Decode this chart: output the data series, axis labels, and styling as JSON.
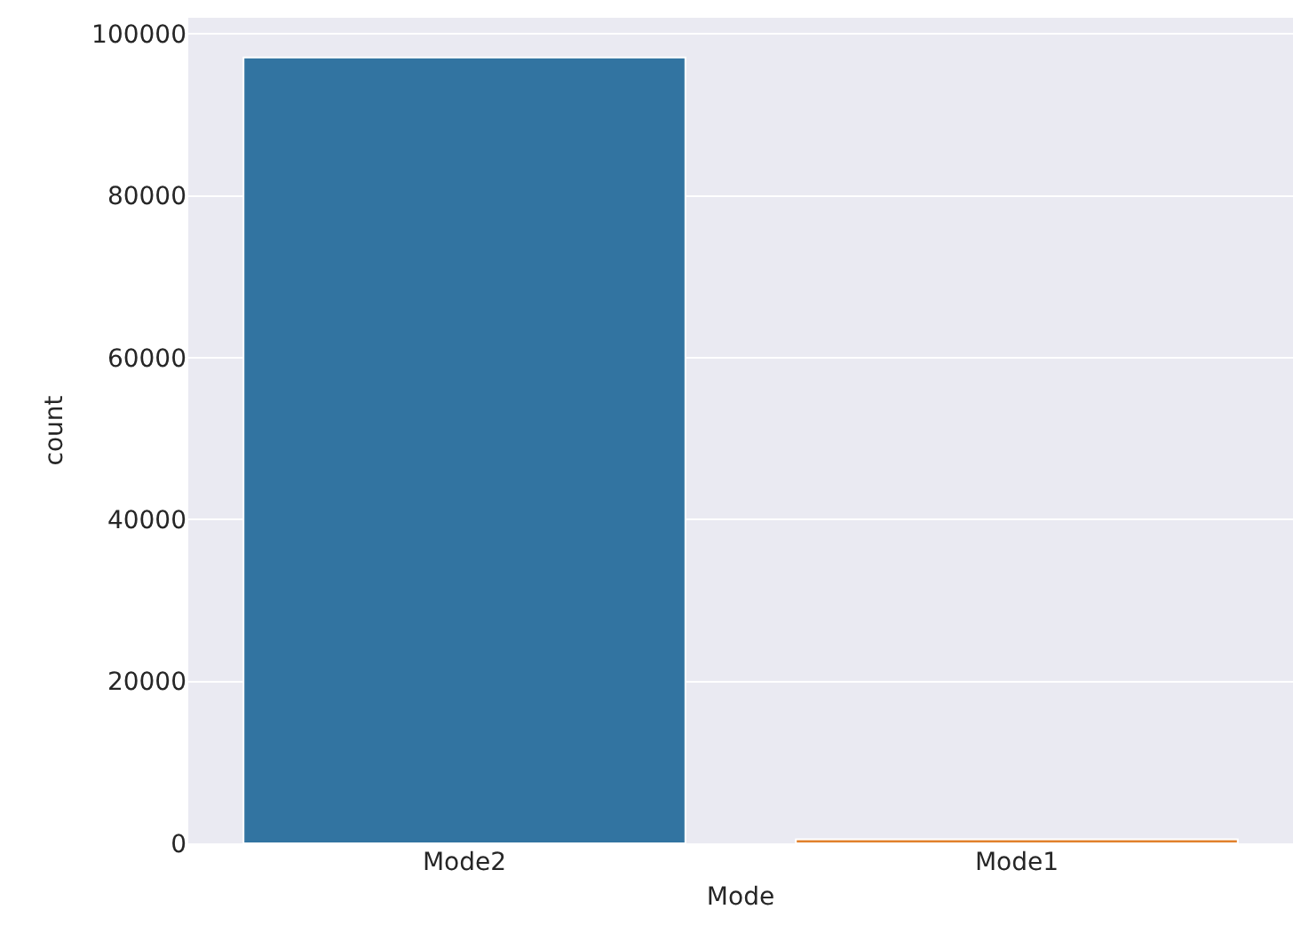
{
  "chart_data": {
    "type": "bar",
    "xlabel": "Mode",
    "ylabel": "count",
    "categories": [
      "Mode2",
      "Mode1"
    ],
    "values": [
      97100,
      500
    ],
    "colors": [
      "#3274a1",
      "#e1812c"
    ],
    "ylim": [
      0,
      102000
    ],
    "yticks": [
      0,
      20000,
      40000,
      60000,
      80000,
      100000
    ],
    "grid": "y",
    "legend": false
  }
}
